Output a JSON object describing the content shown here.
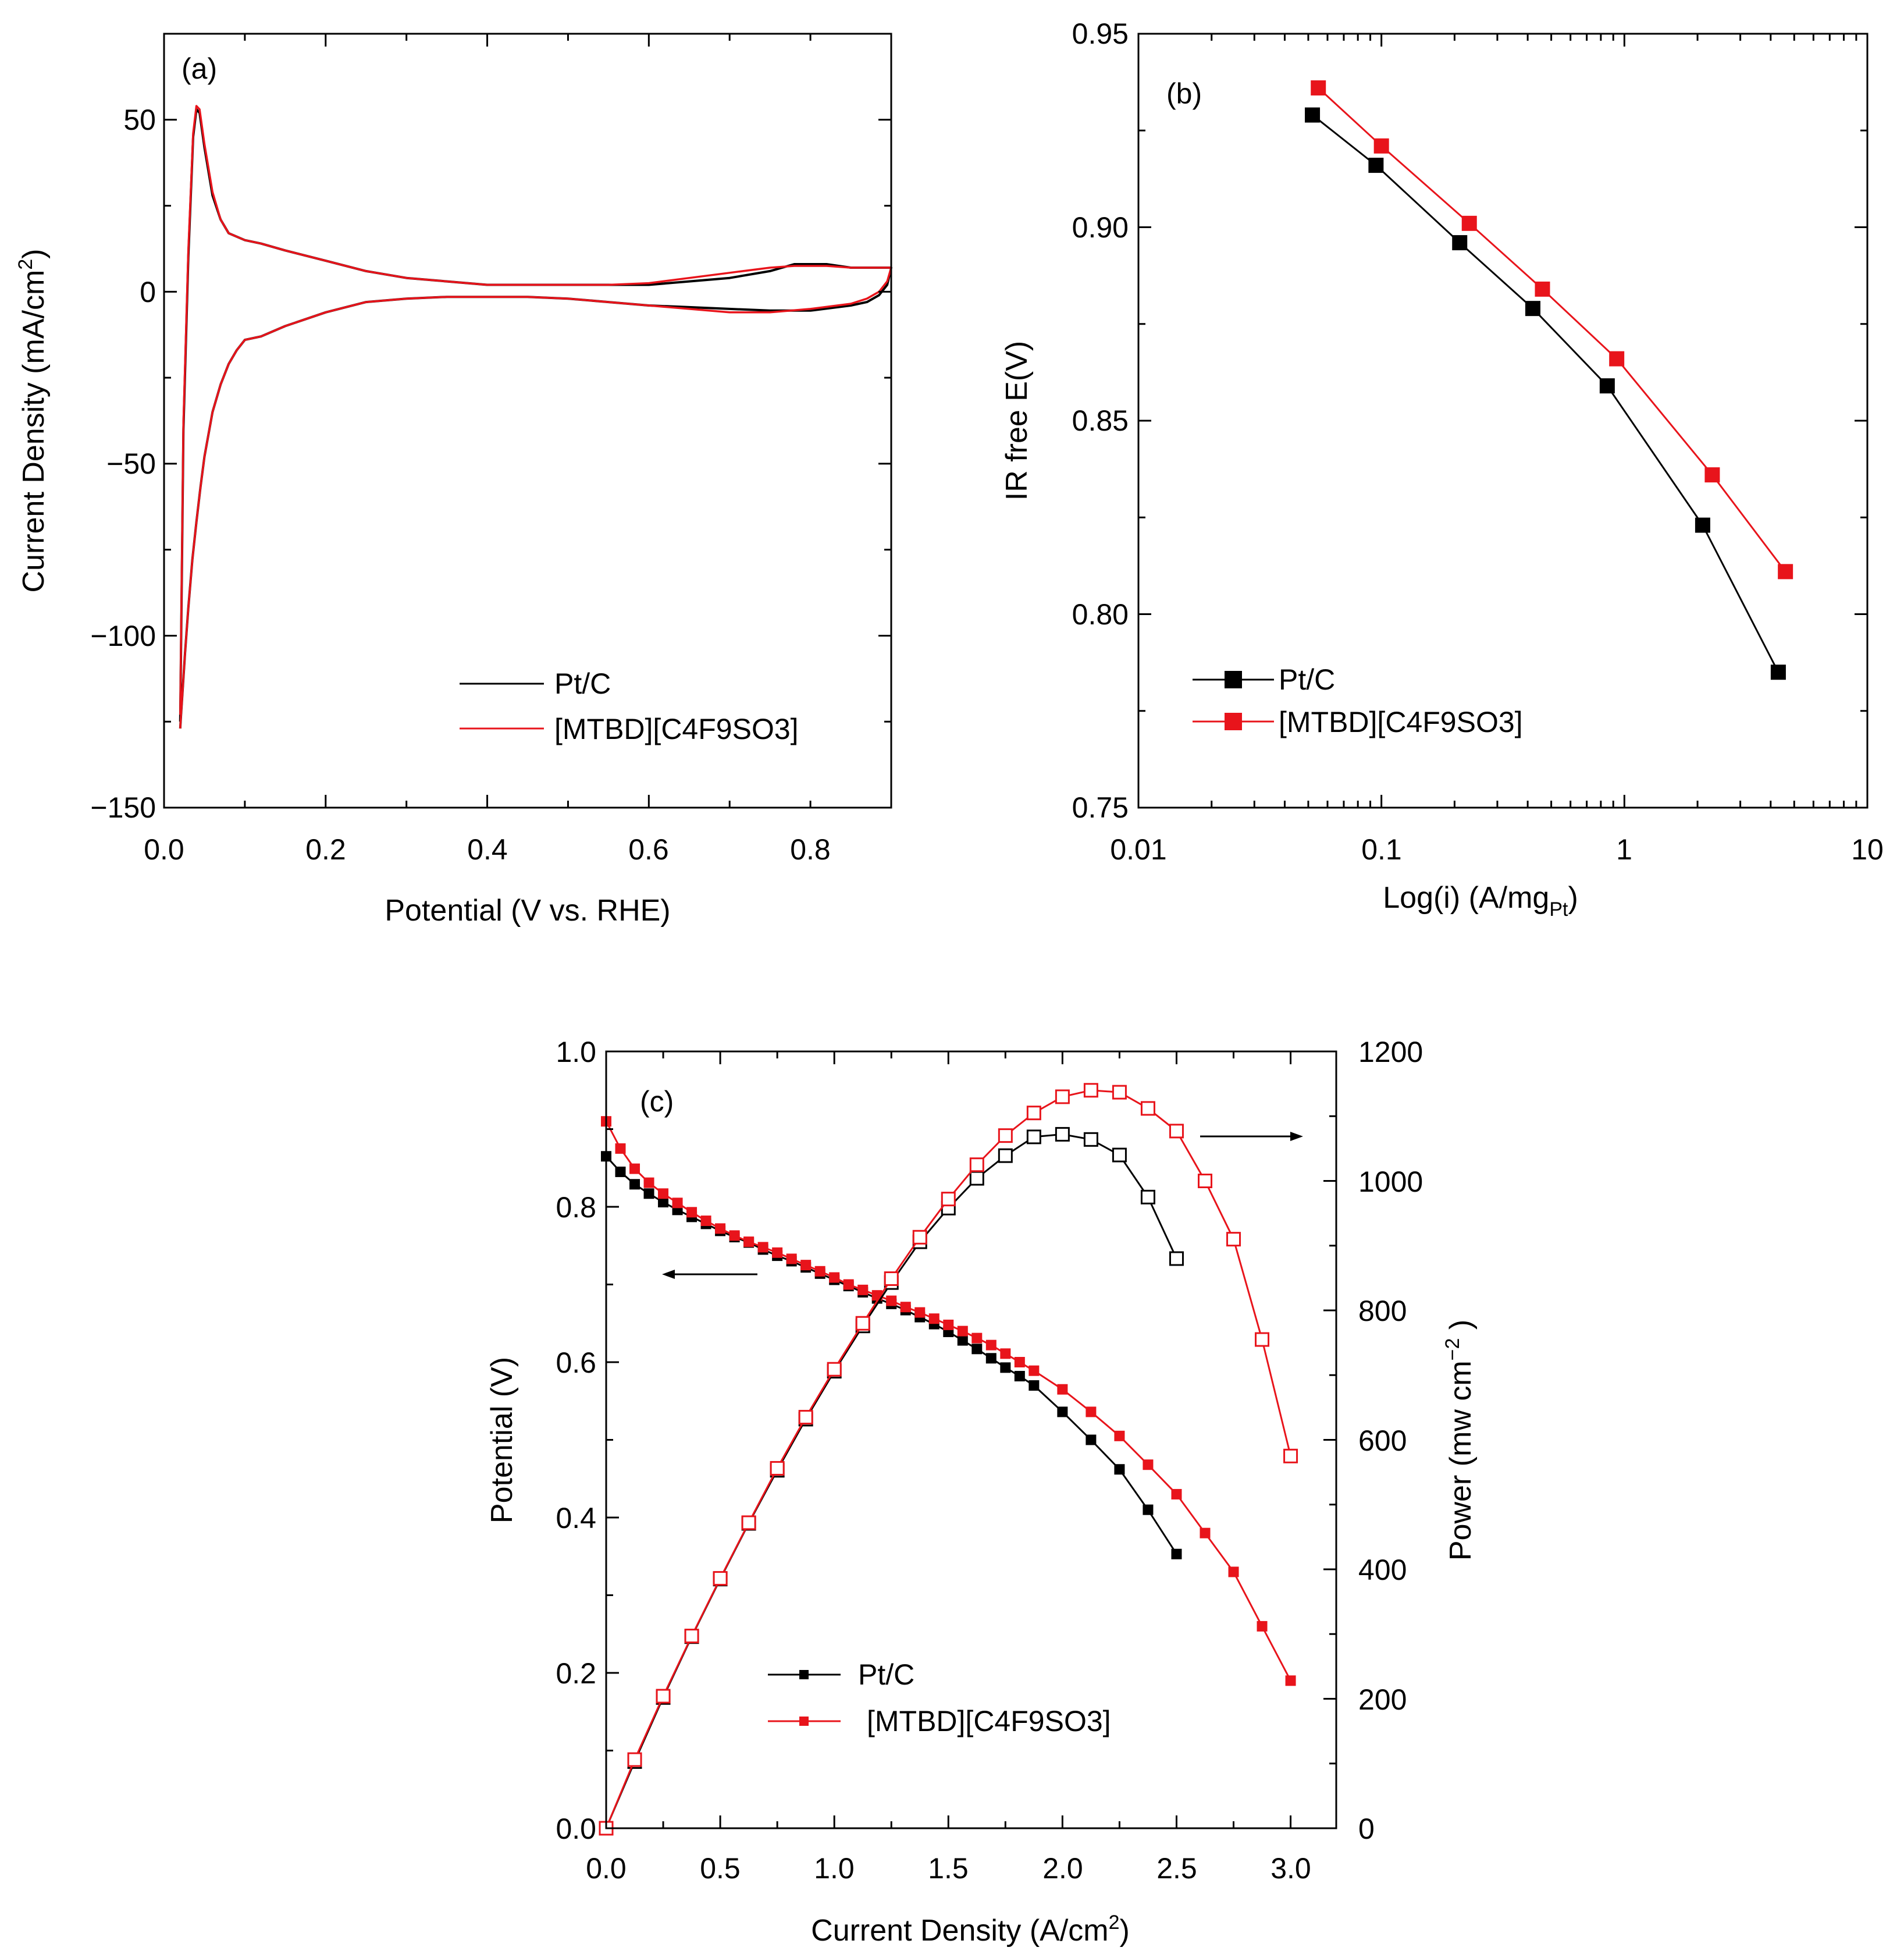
{
  "colors": {
    "pt_c": "#000000",
    "mtbd": "#e8141b",
    "arrow": "#000000"
  },
  "chart_data": [
    {
      "id": "a",
      "type": "line",
      "panel_label": "(a)",
      "xlabel": "Potential (V vs. RHE)",
      "ylabel": "Current Density (mA/cm",
      "ylabel_sup": "2",
      "ylabel_close": ")",
      "xlim": [
        0.0,
        0.9
      ],
      "ylim": [
        -150,
        75
      ],
      "xticks": [
        0.0,
        0.2,
        0.4,
        0.6,
        0.8
      ],
      "xtick_labels": [
        "0.0",
        "0.2",
        "0.4",
        "0.6",
        "0.8"
      ],
      "yticks": [
        50,
        0,
        -50,
        -100,
        -150
      ],
      "ytick_labels": [
        "50",
        "0",
        "−50",
        "−100",
        "−150"
      ],
      "legend": [
        "Pt/C",
        "[MTBD][C4F9SO3]"
      ],
      "legend_position": "lower-right",
      "series": [
        {
          "name": "Pt/C",
          "color": "#000000",
          "x": [
            0.02,
            0.024,
            0.03,
            0.036,
            0.04,
            0.044,
            0.05,
            0.06,
            0.07,
            0.08,
            0.1,
            0.12,
            0.15,
            0.2,
            0.25,
            0.3,
            0.35,
            0.4,
            0.45,
            0.5,
            0.55,
            0.6,
            0.65,
            0.7,
            0.75,
            0.78,
            0.8,
            0.82,
            0.85,
            0.88,
            0.9,
            0.895,
            0.885,
            0.87,
            0.85,
            0.8,
            0.75,
            0.7,
            0.65,
            0.6,
            0.55,
            0.5,
            0.45,
            0.4,
            0.35,
            0.3,
            0.25,
            0.2,
            0.15,
            0.12,
            0.1,
            0.09,
            0.08,
            0.07,
            0.06,
            0.05,
            0.045,
            0.04,
            0.035,
            0.03,
            0.026,
            0.023,
            0.021,
            0.02
          ],
          "y": [
            -125,
            -40,
            10,
            45,
            53,
            52,
            42,
            28,
            21,
            17,
            15,
            14,
            12,
            9,
            6,
            4,
            3,
            2,
            2,
            2,
            2,
            2,
            3,
            4,
            6,
            8,
            8,
            8,
            7,
            7,
            7,
            2,
            -1,
            -3,
            -4,
            -5.5,
            -5.5,
            -5,
            -4.5,
            -4,
            -3,
            -2,
            -1.5,
            -1.5,
            -1.5,
            -2,
            -3,
            -6,
            -10,
            -13,
            -14,
            -17,
            -21,
            -27,
            -35,
            -48,
            -57,
            -67,
            -78,
            -92,
            -105,
            -116,
            -123,
            -127
          ]
        },
        {
          "name": "[MTBD][C4F9SO3]",
          "color": "#e8141b",
          "x": [
            0.02,
            0.024,
            0.03,
            0.036,
            0.04,
            0.044,
            0.05,
            0.06,
            0.07,
            0.08,
            0.1,
            0.12,
            0.15,
            0.2,
            0.25,
            0.3,
            0.35,
            0.4,
            0.45,
            0.5,
            0.55,
            0.6,
            0.65,
            0.7,
            0.75,
            0.78,
            0.8,
            0.82,
            0.85,
            0.88,
            0.9,
            0.895,
            0.885,
            0.87,
            0.85,
            0.8,
            0.75,
            0.7,
            0.65,
            0.6,
            0.55,
            0.5,
            0.45,
            0.4,
            0.35,
            0.3,
            0.25,
            0.2,
            0.15,
            0.12,
            0.1,
            0.09,
            0.08,
            0.07,
            0.06,
            0.05,
            0.045,
            0.04,
            0.035,
            0.03,
            0.026,
            0.023,
            0.021,
            0.02
          ],
          "y": [
            -123,
            -38,
            12,
            46,
            54,
            53,
            43,
            29,
            21,
            17,
            15,
            14,
            12,
            9,
            6,
            4,
            3,
            2,
            2,
            2,
            2,
            2.5,
            4,
            5.5,
            7,
            7.5,
            7.5,
            7.5,
            7,
            7,
            7,
            3,
            0,
            -2,
            -3.5,
            -5,
            -6,
            -6,
            -5,
            -4,
            -3,
            -2,
            -1.5,
            -1.5,
            -1.5,
            -2,
            -3,
            -6,
            -10,
            -13,
            -14,
            -17,
            -21,
            -27,
            -35,
            -48,
            -57,
            -67,
            -78,
            -92,
            -105,
            -116,
            -123,
            -127
          ]
        }
      ]
    },
    {
      "id": "b",
      "type": "line",
      "panel_label": "(b)",
      "xlabel": "Log(i) (A/mg",
      "xlabel_sub": "Pt",
      "xlabel_close": ")",
      "ylabel": "IR free E(V)",
      "xscale": "log",
      "xlim": [
        0.01,
        10
      ],
      "ylim": [
        0.75,
        0.95
      ],
      "xticks": [
        0.01,
        0.1,
        1,
        10
      ],
      "xtick_labels": [
        "0.01",
        "0.1",
        "1",
        "10"
      ],
      "yticks": [
        0.75,
        0.8,
        0.85,
        0.9,
        0.95
      ],
      "ytick_labels": [
        "0.75",
        "0.80",
        "0.85",
        "0.90",
        "0.95"
      ],
      "legend": [
        "Pt/C",
        "[MTBD][C4F9SO3]"
      ],
      "legend_position": "lower-left",
      "series": [
        {
          "name": "Pt/C",
          "color": "#000000",
          "x": [
            0.052,
            0.095,
            0.21,
            0.42,
            0.85,
            2.1,
            4.3
          ],
          "y": [
            0.929,
            0.916,
            0.896,
            0.879,
            0.859,
            0.823,
            0.785
          ]
        },
        {
          "name": "[MTBD][C4F9SO3]",
          "color": "#e8141b",
          "x": [
            0.055,
            0.1,
            0.23,
            0.46,
            0.93,
            2.3,
            4.6
          ],
          "y": [
            0.936,
            0.921,
            0.901,
            0.884,
            0.866,
            0.836,
            0.811
          ]
        }
      ]
    },
    {
      "id": "c",
      "type": "line",
      "panel_label": "(c)",
      "xlabel": "Current Density (A/cm",
      "xlabel_sup": "2",
      "xlabel_close": ")",
      "ylabel": "Potential (V)",
      "ylabel_right": "Power (mw cm",
      "ylabel_right_sup": "−2",
      "ylabel_right_close": " )",
      "xlim": [
        0.0,
        3.2
      ],
      "ylim": [
        0.0,
        1.0
      ],
      "ylim_right": [
        0,
        1200
      ],
      "xticks": [
        0.0,
        0.5,
        1.0,
        1.5,
        2.0,
        2.5,
        3.0
      ],
      "xtick_labels": [
        "0.0",
        "0.5",
        "1.0",
        "1.5",
        "2.0",
        "2.5",
        "3.0"
      ],
      "yticks": [
        0.0,
        0.2,
        0.4,
        0.6,
        0.8,
        1.0
      ],
      "ytick_labels": [
        "0.0",
        "0.2",
        "0.4",
        "0.6",
        "0.8",
        "1.0"
      ],
      "yticks_right": [
        0,
        200,
        400,
        600,
        800,
        1000,
        1200
      ],
      "ytick_right_labels": [
        "0",
        "200",
        "400",
        "600",
        "800",
        "1000",
        "1200"
      ],
      "legend": [
        "Pt/C",
        "[MTBD][C4F9SO3]"
      ],
      "legend_position": "lower-center",
      "series": [
        {
          "name": "Pt/C",
          "axis": "left",
          "marker": "filled",
          "color": "#000000",
          "x": [
            0,
            0.0625,
            0.125,
            0.1875,
            0.25,
            0.3125,
            0.375,
            0.4375,
            0.5,
            0.5625,
            0.625,
            0.6875,
            0.75,
            0.8125,
            0.875,
            0.9375,
            1.0,
            1.0625,
            1.125,
            1.1875,
            1.25,
            1.3125,
            1.375,
            1.4375,
            1.5,
            1.5625,
            1.625,
            1.6875,
            1.75,
            1.8125,
            1.875,
            2.0,
            2.125,
            2.25,
            2.375,
            2.5
          ],
          "y": [
            0.865,
            0.845,
            0.829,
            0.817,
            0.806,
            0.796,
            0.787,
            0.778,
            0.769,
            0.761,
            0.754,
            0.745,
            0.737,
            0.73,
            0.722,
            0.714,
            0.706,
            0.698,
            0.69,
            0.682,
            0.675,
            0.667,
            0.658,
            0.649,
            0.639,
            0.628,
            0.617,
            0.605,
            0.593,
            0.582,
            0.57,
            0.536,
            0.5,
            0.462,
            0.41,
            0.353
          ]
        },
        {
          "name": "[MTBD][C4F9SO3]",
          "axis": "left",
          "marker": "filled",
          "color": "#e8141b",
          "x": [
            0,
            0.0625,
            0.125,
            0.1875,
            0.25,
            0.3125,
            0.375,
            0.4375,
            0.5,
            0.5625,
            0.625,
            0.6875,
            0.75,
            0.8125,
            0.875,
            0.9375,
            1.0,
            1.0625,
            1.125,
            1.1875,
            1.25,
            1.3125,
            1.375,
            1.4375,
            1.5,
            1.5625,
            1.625,
            1.6875,
            1.75,
            1.8125,
            1.875,
            2.0,
            2.125,
            2.25,
            2.375,
            2.5,
            2.625,
            2.75,
            2.875,
            3.0
          ],
          "y": [
            0.91,
            0.875,
            0.849,
            0.831,
            0.817,
            0.805,
            0.793,
            0.782,
            0.772,
            0.763,
            0.755,
            0.748,
            0.741,
            0.733,
            0.725,
            0.717,
            0.709,
            0.7,
            0.693,
            0.686,
            0.679,
            0.671,
            0.664,
            0.656,
            0.648,
            0.64,
            0.631,
            0.622,
            0.611,
            0.6,
            0.589,
            0.565,
            0.536,
            0.505,
            0.468,
            0.43,
            0.38,
            0.33,
            0.26,
            0.19
          ]
        },
        {
          "name": "Pt/C power",
          "axis": "right",
          "marker": "open",
          "color": "#000000",
          "x": [
            0,
            0.125,
            0.25,
            0.375,
            0.5,
            0.625,
            0.75,
            0.875,
            1.0,
            1.125,
            1.25,
            1.375,
            1.5,
            1.625,
            1.75,
            1.875,
            2.0,
            2.125,
            2.25,
            2.375,
            2.5
          ],
          "y": [
            0,
            103,
            202,
            296,
            385,
            471,
            553,
            632,
            706,
            776,
            843,
            906,
            958,
            1004,
            1039,
            1068,
            1072,
            1064,
            1040,
            975,
            880
          ]
        },
        {
          "name": "[MTBD][C4F9SO3] power",
          "axis": "right",
          "marker": "open",
          "color": "#e8141b",
          "x": [
            0,
            0.125,
            0.25,
            0.375,
            0.5,
            0.625,
            0.75,
            0.875,
            1.0,
            1.125,
            1.25,
            1.375,
            1.5,
            1.625,
            1.75,
            1.875,
            2.0,
            2.125,
            2.25,
            2.375,
            2.5,
            2.625,
            2.75,
            2.875,
            3.0
          ],
          "y": [
            0,
            106,
            204,
            297,
            386,
            472,
            556,
            635,
            709,
            780,
            849,
            913,
            972,
            1025,
            1070,
            1105,
            1130,
            1140,
            1137,
            1112,
            1077,
            1000,
            910,
            755,
            575
          ]
        }
      ]
    }
  ]
}
